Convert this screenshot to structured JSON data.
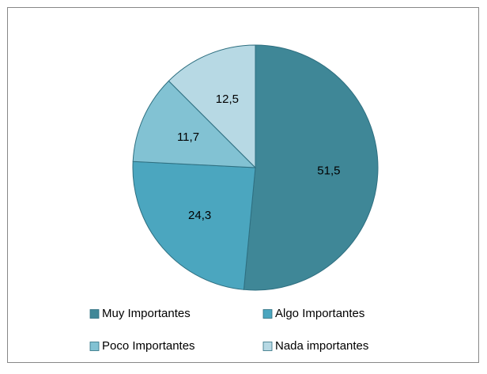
{
  "chart_data": {
    "type": "pie",
    "categories": [
      "Muy Importantes",
      "Algo Importantes",
      "Poco Importantes",
      "Nada importantes"
    ],
    "values": [
      51.5,
      24.3,
      11.7,
      12.5
    ],
    "value_labels": [
      "51,5",
      "24,3",
      "11,7",
      "12,5"
    ],
    "colors": [
      "#3f8797",
      "#4ba6bf",
      "#82c2d3",
      "#b7d9e4"
    ],
    "legend": "bottom"
  }
}
